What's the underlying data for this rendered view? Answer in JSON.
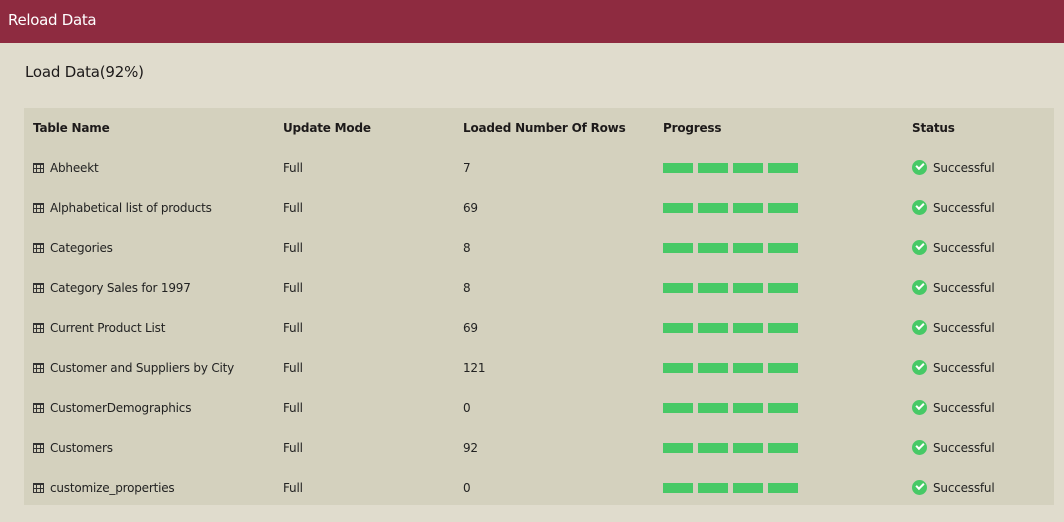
{
  "header": {
    "title": "Reload Data"
  },
  "section": {
    "title": "Load Data(92%)"
  },
  "colors": {
    "accent": "#8e2b40",
    "success": "#47c966"
  },
  "table": {
    "columns": [
      "Table Name",
      "Update Mode",
      "Loaded Number Of Rows",
      "Progress",
      "Status"
    ],
    "rows": [
      {
        "name": "Abheekt",
        "mode": "Full",
        "rows": "7",
        "progress": 1.0,
        "status": "Successful"
      },
      {
        "name": "Alphabetical list of products",
        "mode": "Full",
        "rows": "69",
        "progress": 1.0,
        "status": "Successful"
      },
      {
        "name": "Categories",
        "mode": "Full",
        "rows": "8",
        "progress": 1.0,
        "status": "Successful"
      },
      {
        "name": "Category Sales for 1997",
        "mode": "Full",
        "rows": "8",
        "progress": 1.0,
        "status": "Successful"
      },
      {
        "name": "Current Product List",
        "mode": "Full",
        "rows": "69",
        "progress": 1.0,
        "status": "Successful"
      },
      {
        "name": "Customer and Suppliers by City",
        "mode": "Full",
        "rows": "121",
        "progress": 1.0,
        "status": "Successful"
      },
      {
        "name": "CustomerDemographics",
        "mode": "Full",
        "rows": "0",
        "progress": 1.0,
        "status": "Successful"
      },
      {
        "name": "Customers",
        "mode": "Full",
        "rows": "92",
        "progress": 1.0,
        "status": "Successful"
      },
      {
        "name": "customize_properties",
        "mode": "Full",
        "rows": "0",
        "progress": 1.0,
        "status": "Successful"
      }
    ]
  }
}
